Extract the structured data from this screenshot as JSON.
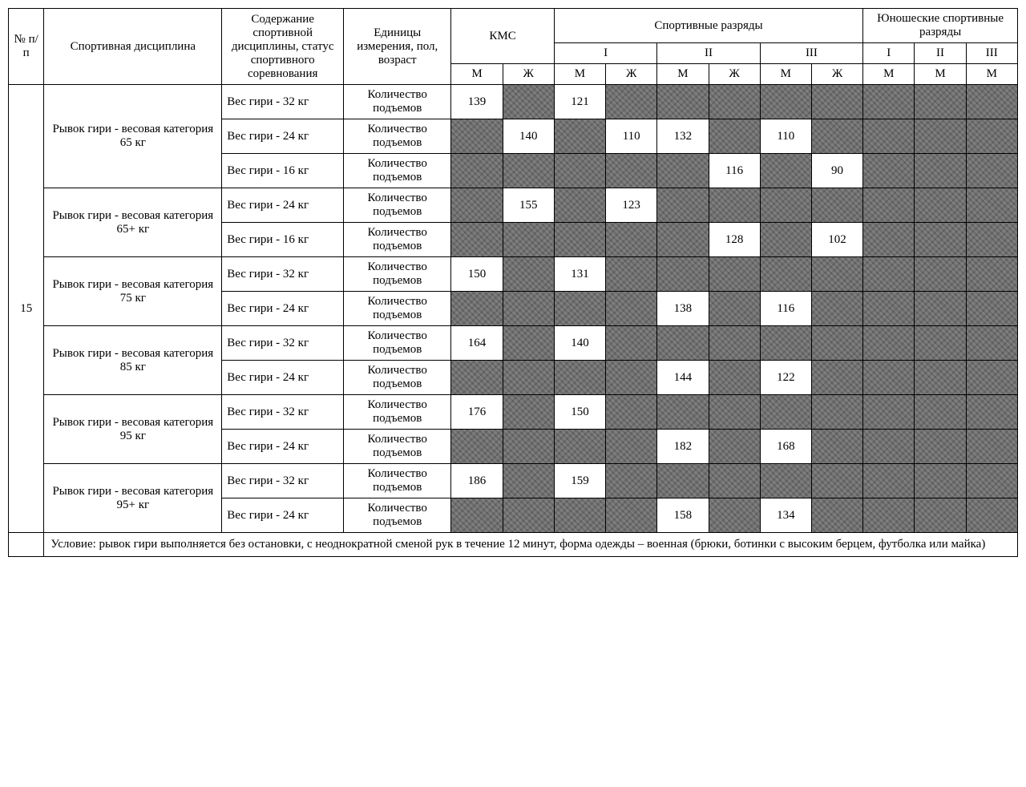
{
  "headers": {
    "num": "№ п/п",
    "discipline": "Спортивная дисциплина",
    "content": "Содержание спортивной дисциплины, статус спортивного соревнования",
    "units": "Единицы измерения, пол, возраст",
    "kms": "КМС",
    "sport_ranks": "Спортивные разряды",
    "youth_ranks": "Юношеские спортивные разряды",
    "I": "I",
    "II": "II",
    "III": "III",
    "yI": "I",
    "yII": "II",
    "yIII": "III",
    "M": "М",
    "F": "Ж"
  },
  "row_num": "15",
  "disciplines": [
    {
      "name": "Рывок гири - весовая категория 65 кг",
      "rows": [
        {
          "weight": "Вес гири - 32 кг",
          "unit": "Количество подъемов",
          "cells": [
            "139",
            null,
            "121",
            null,
            null,
            null,
            null,
            null,
            null,
            null,
            null
          ]
        },
        {
          "weight": "Вес гири - 24 кг",
          "unit": "Количество подъемов",
          "cells": [
            null,
            "140",
            null,
            "110",
            "132",
            null,
            "110",
            null,
            null,
            null,
            null
          ]
        },
        {
          "weight": "Вес гири - 16 кг",
          "unit": "Количество подъемов",
          "cells": [
            null,
            null,
            null,
            null,
            null,
            "116",
            null,
            "90",
            null,
            null,
            null
          ]
        }
      ]
    },
    {
      "name": "Рывок гири - весовая категория 65+ кг",
      "rows": [
        {
          "weight": "Вес гири - 24 кг",
          "unit": "Количество подъемов",
          "cells": [
            null,
            "155",
            null,
            "123",
            null,
            null,
            null,
            null,
            null,
            null,
            null
          ]
        },
        {
          "weight": "Вес гири - 16 кг",
          "unit": "Количество подъемов",
          "cells": [
            null,
            null,
            null,
            null,
            null,
            "128",
            null,
            "102",
            null,
            null,
            null
          ]
        }
      ]
    },
    {
      "name": "Рывок гири - весовая категория 75 кг",
      "rows": [
        {
          "weight": "Вес гири - 32 кг",
          "unit": "Количество подъемов",
          "cells": [
            "150",
            null,
            "131",
            null,
            null,
            null,
            null,
            null,
            null,
            null,
            null
          ]
        },
        {
          "weight": "Вес гири - 24 кг",
          "unit": "Количество подъемов",
          "cells": [
            null,
            null,
            null,
            null,
            "138",
            null,
            "116",
            null,
            null,
            null,
            null
          ]
        }
      ]
    },
    {
      "name": "Рывок гири - весовая категория 85 кг",
      "rows": [
        {
          "weight": "Вес гири - 32 кг",
          "unit": "Количество подъемов",
          "cells": [
            "164",
            null,
            "140",
            null,
            null,
            null,
            null,
            null,
            null,
            null,
            null
          ]
        },
        {
          "weight": "Вес гири - 24 кг",
          "unit": "Количество подъемов",
          "cells": [
            null,
            null,
            null,
            null,
            "144",
            null,
            "122",
            null,
            null,
            null,
            null
          ]
        }
      ]
    },
    {
      "name": "Рывок гири - весовая категория 95 кг",
      "rows": [
        {
          "weight": "Вес гири - 32 кг",
          "unit": "Количество подъемов",
          "cells": [
            "176",
            null,
            "150",
            null,
            null,
            null,
            null,
            null,
            null,
            null,
            null
          ]
        },
        {
          "weight": "Вес гири - 24 кг",
          "unit": "Количество подъемов",
          "cells": [
            null,
            null,
            null,
            null,
            "182",
            null,
            "168",
            null,
            null,
            null,
            null
          ]
        }
      ]
    },
    {
      "name": "Рывок гири - весовая категория 95+ кг",
      "rows": [
        {
          "weight": "Вес гири - 32 кг",
          "unit": "Количество подъемов",
          "cells": [
            "186",
            null,
            "159",
            null,
            null,
            null,
            null,
            null,
            null,
            null,
            null
          ]
        },
        {
          "weight": "Вес гири - 24 кг",
          "unit": "Количество подъемов",
          "cells": [
            null,
            null,
            null,
            null,
            "158",
            null,
            "134",
            null,
            null,
            null,
            null
          ]
        }
      ]
    }
  ],
  "footnote": "Условие: рывок гири выполняется без остановки, с неоднократной сменой рук в течение 12 минут, форма одежды – военная (брюки, ботинки с высоким берцем, футболка или майка)",
  "style": {
    "shaded_color": "#6f6f6f",
    "border_color": "#000000",
    "background": "#ffffff",
    "font_family": "Times New Roman",
    "font_size_pt": 11
  }
}
